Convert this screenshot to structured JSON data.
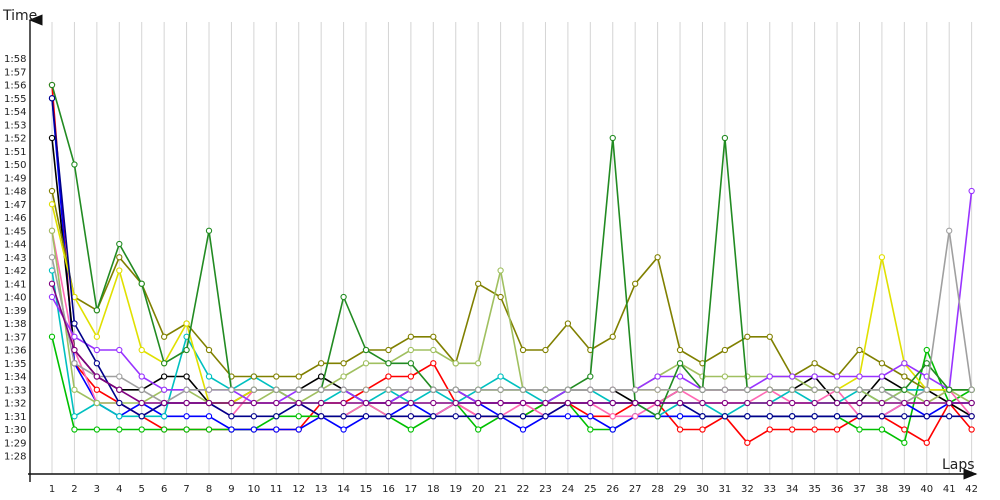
{
  "chart_data": {
    "type": "line",
    "ylabel": "Time",
    "xlabel": "Laps",
    "x": [
      1,
      2,
      3,
      4,
      5,
      6,
      7,
      8,
      9,
      10,
      11,
      12,
      13,
      14,
      15,
      16,
      17,
      18,
      19,
      20,
      21,
      22,
      23,
      24,
      25,
      26,
      27,
      28,
      29,
      30,
      31,
      32,
      33,
      34,
      35,
      36,
      37,
      38,
      39,
      40,
      41,
      42
    ],
    "ylim_seconds": [
      88,
      118
    ],
    "y_tick_labels": [
      "1:28",
      "1:29",
      "1:30",
      "1:31",
      "1:32",
      "1:33",
      "1:34",
      "1:35",
      "1:36",
      "1:37",
      "1:38",
      "1:39",
      "1:40",
      "1:41",
      "1:42",
      "1:43",
      "1:44",
      "1:45",
      "1:46",
      "1:47",
      "1:48",
      "1:49",
      "1:50",
      "1:51",
      "1:52",
      "1:53",
      "1:54",
      "1:55",
      "1:56",
      "1:57",
      "1:58"
    ],
    "grid": true,
    "legend": "none",
    "series": [
      {
        "color": "#ff0000",
        "values": [
          116,
          95,
          93,
          92,
          91,
          90,
          90,
          90,
          90,
          90,
          90,
          90,
          92,
          92,
          93,
          94,
          94,
          95,
          92,
          91,
          91,
          91,
          92,
          92,
          91,
          91,
          92,
          92,
          90,
          90,
          91,
          89,
          90,
          90,
          90,
          90,
          91,
          91,
          90,
          89,
          92,
          90
        ]
      },
      {
        "color": "#00c000",
        "values": [
          97,
          90,
          90,
          90,
          90,
          90,
          90,
          90,
          90,
          90,
          91,
          91,
          91,
          91,
          92,
          91,
          90,
          91,
          92,
          90,
          91,
          91,
          92,
          92,
          90,
          90,
          91,
          91,
          91,
          91,
          91,
          91,
          91,
          91,
          91,
          91,
          90,
          90,
          89,
          96,
          92,
          93
        ]
      },
      {
        "color": "#0000ff",
        "values": [
          115,
          95,
          92,
          91,
          92,
          91,
          91,
          91,
          90,
          90,
          90,
          90,
          91,
          90,
          91,
          91,
          92,
          91,
          92,
          92,
          91,
          90,
          91,
          91,
          91,
          90,
          91,
          91,
          91,
          91,
          91,
          91,
          91,
          91,
          91,
          91,
          91,
          91,
          92,
          91,
          92,
          92
        ]
      },
      {
        "color": "#000000",
        "values": [
          112,
          96,
          94,
          93,
          93,
          94,
          94,
          92,
          92,
          93,
          93,
          93,
          94,
          93,
          92,
          92,
          93,
          93,
          93,
          92,
          92,
          92,
          92,
          93,
          93,
          93,
          92,
          92,
          93,
          93,
          93,
          93,
          93,
          93,
          94,
          92,
          92,
          94,
          93,
          93,
          92,
          91
        ]
      },
      {
        "color": "#ff69b4",
        "values": [
          105,
          96,
          92,
          92,
          91,
          92,
          92,
          92,
          91,
          93,
          93,
          92,
          91,
          91,
          92,
          91,
          91,
          91,
          92,
          91,
          91,
          92,
          91,
          92,
          92,
          91,
          91,
          92,
          93,
          92,
          92,
          92,
          93,
          92,
          92,
          93,
          91,
          91,
          92,
          92,
          93,
          91
        ]
      },
      {
        "color": "#00c0c0",
        "values": [
          102,
          91,
          92,
          91,
          91,
          91,
          97,
          94,
          93,
          94,
          93,
          92,
          92,
          93,
          92,
          93,
          92,
          93,
          92,
          93,
          94,
          93,
          92,
          93,
          93,
          92,
          92,
          91,
          92,
          92,
          91,
          92,
          92,
          93,
          92,
          92,
          93,
          92,
          93,
          93,
          93,
          93
        ]
      },
      {
        "color": "#808000",
        "values": [
          108,
          100,
          99,
          103,
          101,
          97,
          98,
          96,
          94,
          94,
          94,
          94,
          95,
          95,
          96,
          96,
          97,
          97,
          95,
          101,
          100,
          96,
          96,
          98,
          96,
          97,
          101,
          103,
          96,
          95,
          96,
          97,
          97,
          94,
          95,
          94,
          96,
          95,
          94,
          93,
          93,
          93
        ]
      },
      {
        "color": "#a0c060",
        "values": [
          105,
          93,
          92,
          92,
          92,
          93,
          93,
          92,
          92,
          92,
          93,
          92,
          93,
          94,
          95,
          95,
          96,
          96,
          95,
          95,
          102,
          93,
          93,
          93,
          93,
          93,
          93,
          94,
          95,
          94,
          94,
          94,
          94,
          94,
          93,
          93,
          93,
          92,
          93,
          92,
          93,
          92
        ]
      },
      {
        "color": "#e0e000",
        "values": [
          107,
          100,
          97,
          102,
          96,
          95,
          98,
          92,
          92,
          93,
          93,
          93,
          93,
          93,
          93,
          93,
          93,
          93,
          93,
          93,
          93,
          93,
          93,
          93,
          93,
          93,
          93,
          93,
          93,
          93,
          93,
          93,
          93,
          93,
          93,
          93,
          94,
          103,
          95,
          93,
          93,
          93
        ]
      },
      {
        "color": "#9933ff",
        "values": [
          100,
          97,
          96,
          96,
          94,
          93,
          93,
          93,
          93,
          92,
          92,
          93,
          93,
          93,
          92,
          92,
          93,
          93,
          93,
          92,
          92,
          92,
          92,
          93,
          93,
          93,
          93,
          94,
          94,
          93,
          93,
          93,
          94,
          94,
          94,
          94,
          94,
          94,
          95,
          94,
          93,
          108
        ]
      },
      {
        "color": "#228b22",
        "values": [
          116,
          110,
          99,
          104,
          101,
          95,
          96,
          105,
          93,
          93,
          93,
          93,
          93,
          100,
          96,
          95,
          95,
          93,
          93,
          93,
          93,
          93,
          93,
          93,
          94,
          112,
          92,
          91,
          95,
          93,
          112,
          93,
          93,
          93,
          93,
          93,
          93,
          93,
          93,
          95,
          93,
          93
        ]
      },
      {
        "color": "#a0a0a0",
        "values": [
          103,
          95,
          94,
          94,
          93,
          92,
          93,
          93,
          93,
          93,
          93,
          93,
          93,
          93,
          93,
          93,
          93,
          93,
          93,
          93,
          93,
          93,
          93,
          93,
          93,
          93,
          93,
          93,
          93,
          93,
          93,
          93,
          93,
          93,
          93,
          93,
          93,
          93,
          92,
          93,
          105,
          93
        ]
      },
      {
        "color": "#00008b",
        "values": [
          115,
          98,
          95,
          92,
          91,
          92,
          92,
          92,
          91,
          91,
          91,
          92,
          91,
          91,
          91,
          91,
          91,
          91,
          91,
          91,
          91,
          91,
          91,
          92,
          92,
          92,
          92,
          92,
          92,
          91,
          91,
          91,
          91,
          91,
          91,
          91,
          91,
          91,
          91,
          91,
          91,
          91
        ]
      },
      {
        "color": "#800080",
        "values": [
          101,
          96,
          94,
          93,
          92,
          92,
          92,
          92,
          92,
          92,
          92,
          92,
          92,
          92,
          92,
          92,
          92,
          92,
          92,
          92,
          92,
          92,
          92,
          92,
          92,
          92,
          92,
          92,
          92,
          92,
          92,
          92,
          92,
          92,
          92,
          92,
          92,
          92,
          92,
          92,
          92,
          92
        ]
      }
    ]
  }
}
